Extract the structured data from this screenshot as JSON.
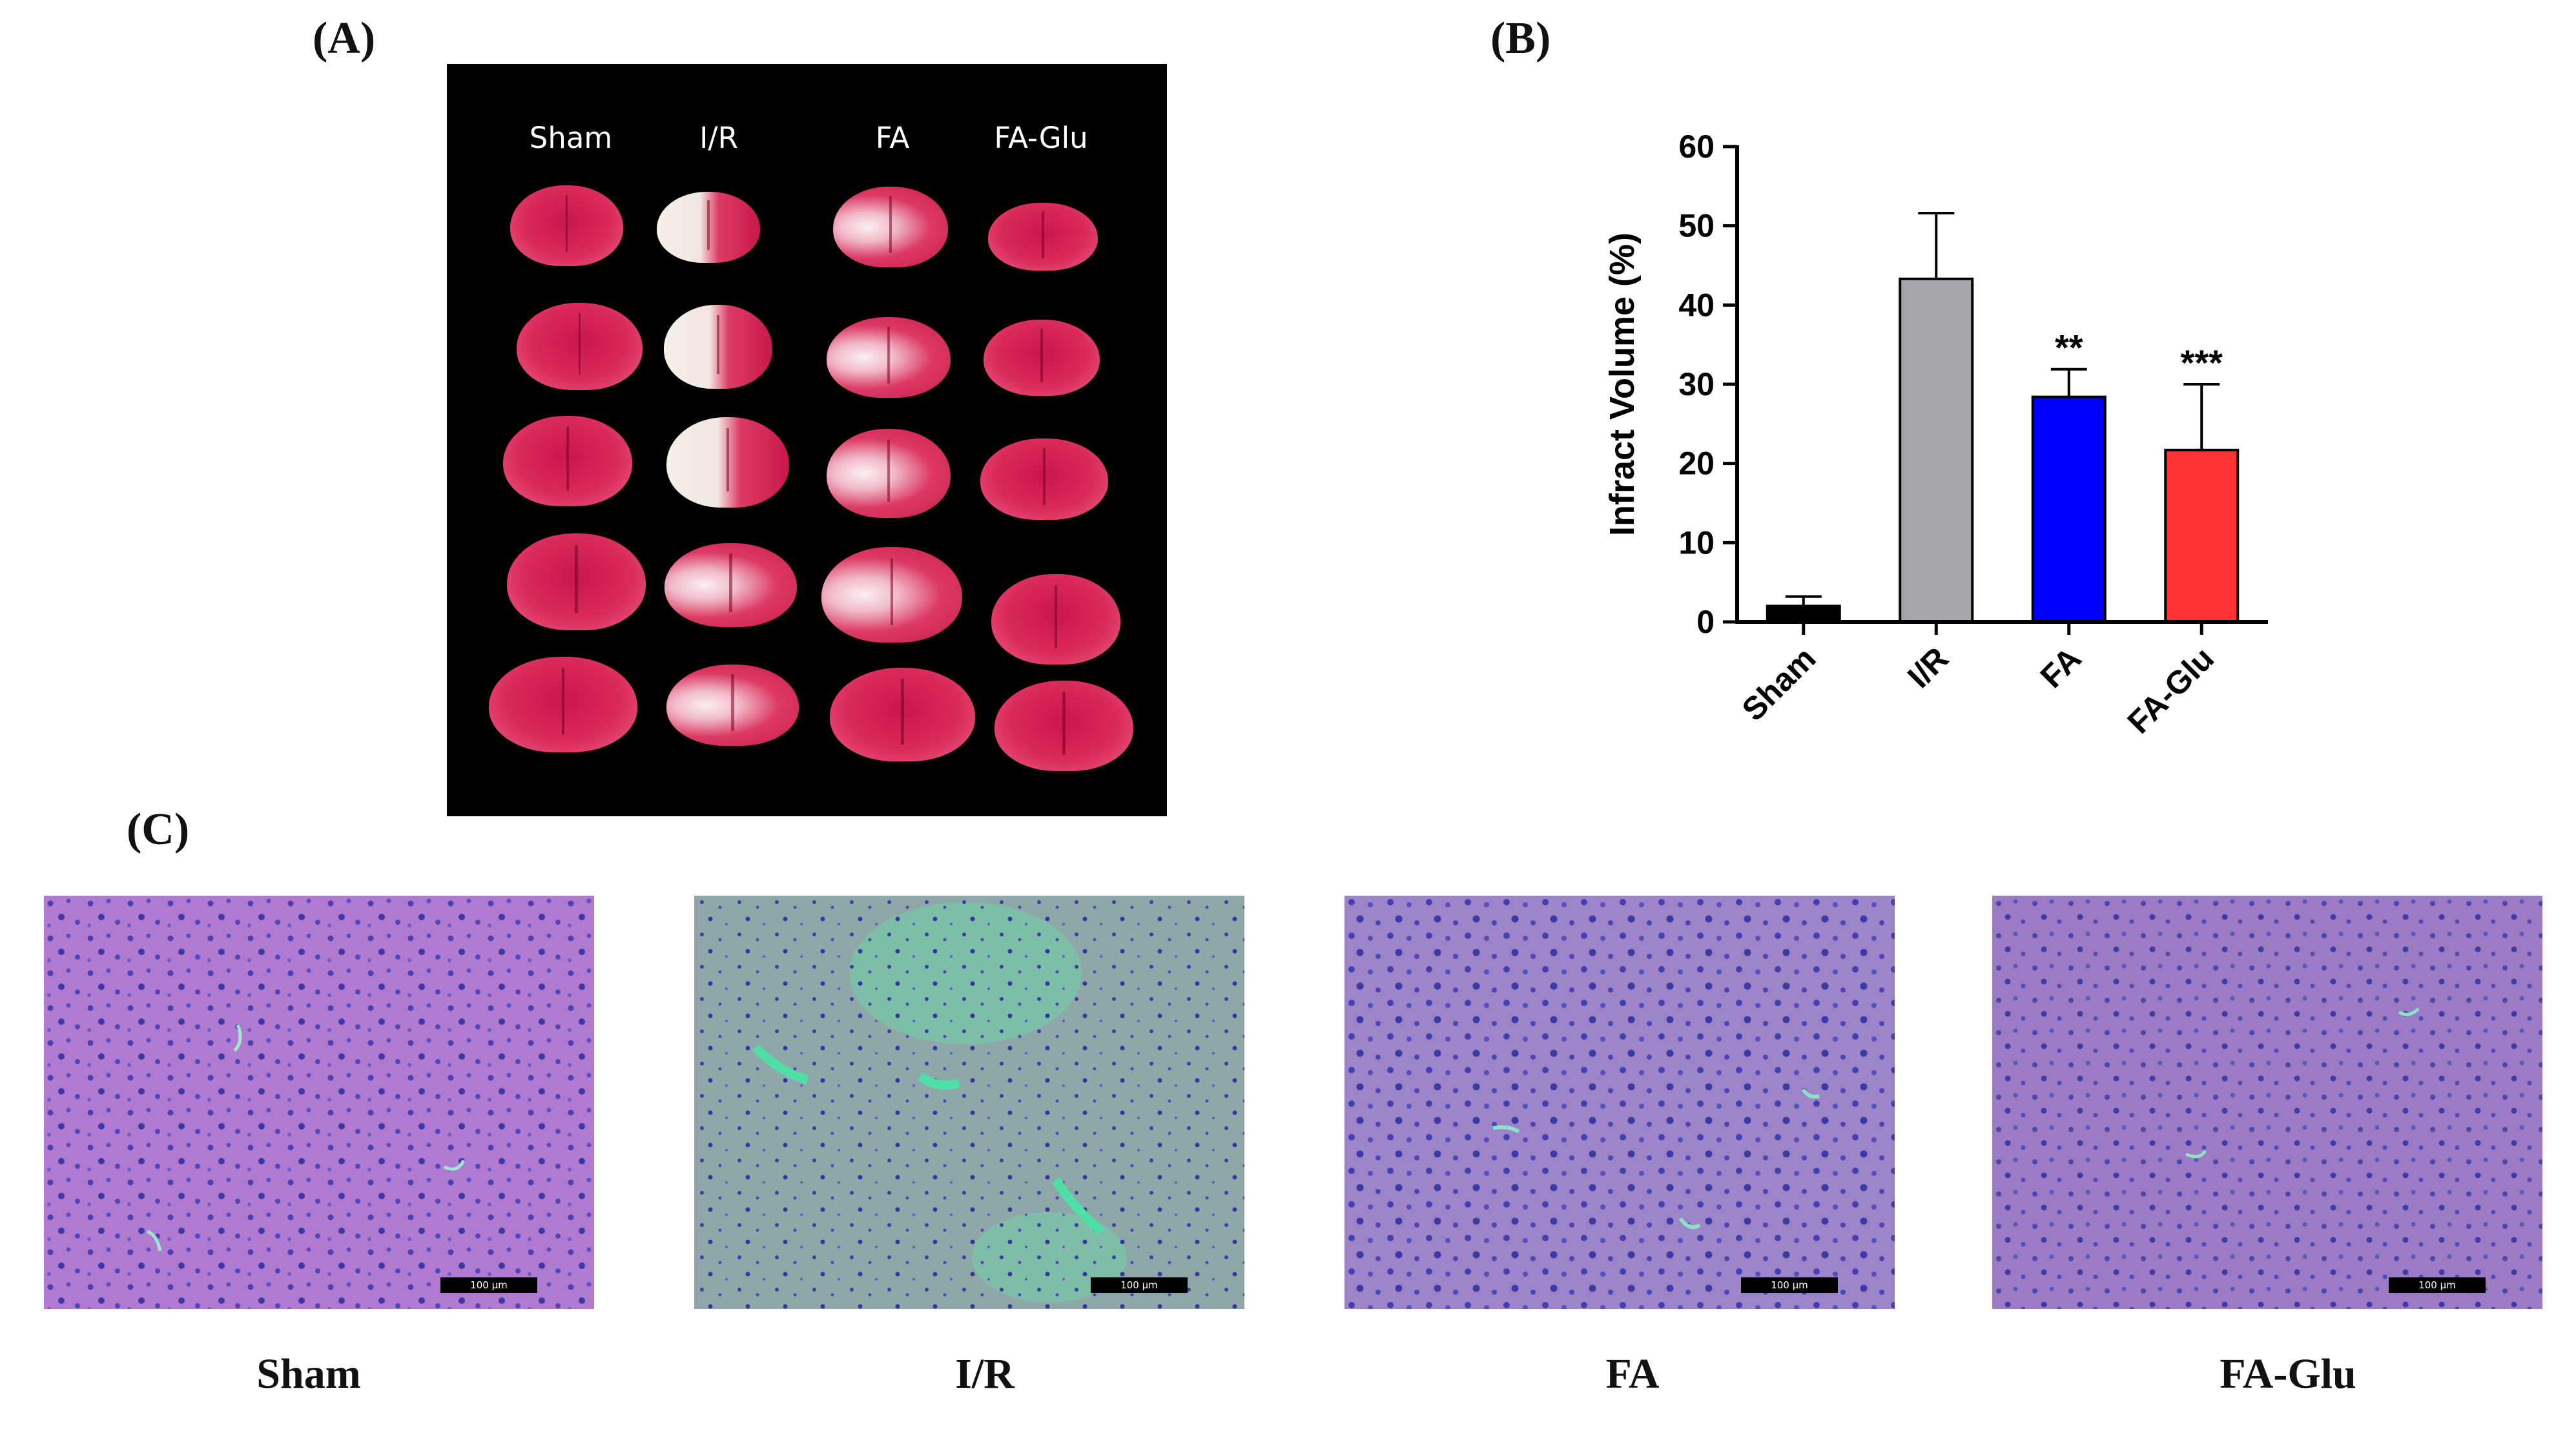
{
  "labels": {
    "a": "(A)",
    "b": "(B)",
    "c": "(C)"
  },
  "photo_a": {
    "column_labels": [
      "Sham",
      "I/R",
      "FA",
      "FA-Glu"
    ]
  },
  "chart_data": {
    "type": "bar",
    "categories": [
      "Sham",
      "I/R",
      "FA",
      "FA-Glu"
    ],
    "values": [
      2.0,
      43.3,
      28.4,
      21.7
    ],
    "errors": [
      1.2,
      8.3,
      3.5,
      8.3
    ],
    "significance": [
      "",
      "",
      "**",
      "***"
    ],
    "colors": [
      "#000000",
      "#a6a6aa",
      "#0000ff",
      "#ff3333"
    ],
    "xlabel": "",
    "ylabel": "Infract Volume  (%)",
    "ylim": [
      0,
      60
    ],
    "yticks": [
      0,
      10,
      20,
      30,
      40,
      50,
      60
    ],
    "grid": false
  },
  "micrographs": {
    "scale_bar_text": "100 μm",
    "captions": [
      "Sham",
      "I/R",
      "FA",
      "FA-Glu"
    ]
  }
}
